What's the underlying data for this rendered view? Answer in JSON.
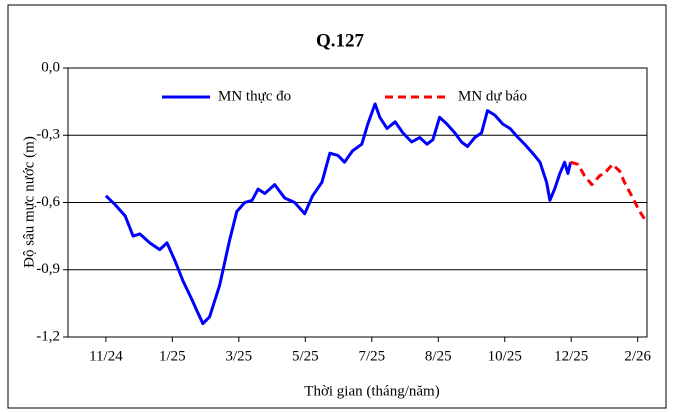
{
  "chart_data": {
    "type": "line",
    "title": "Q.127",
    "x_label": "Thời gian (tháng/năm)",
    "y_label": "Độ sâu mực nước (m)",
    "xlim": [
      -0.57,
      8.14
    ],
    "xticks": [
      {
        "value": 0,
        "label": "11/24"
      },
      {
        "value": 1,
        "label": "1/25"
      },
      {
        "value": 2,
        "label": "3/25"
      },
      {
        "value": 3,
        "label": "5/25"
      },
      {
        "value": 4,
        "label": "7/25"
      },
      {
        "value": 5,
        "label": "8/25"
      },
      {
        "value": 6,
        "label": "10/25"
      },
      {
        "value": 7,
        "label": "12/25"
      },
      {
        "value": 8,
        "label": "2/26"
      }
    ],
    "ylim": [
      -1.2,
      0
    ],
    "yticks": [
      {
        "value": -1.2,
        "label": "-1,2"
      },
      {
        "value": -0.9,
        "label": "-0,9"
      },
      {
        "value": -0.6,
        "label": "-0,6"
      },
      {
        "value": -0.3,
        "label": "-0,3"
      },
      {
        "value": 0,
        "label": "0,0"
      }
    ],
    "grid": true,
    "series": [
      {
        "name": "MN thực đo",
        "color": "#0000ff",
        "dashed": false,
        "x": [
          0,
          0.14,
          0.29,
          0.41,
          0.51,
          0.66,
          0.81,
          0.92,
          1.04,
          1.16,
          1.29,
          1.38,
          1.46,
          1.56,
          1.71,
          1.86,
          1.97,
          2.09,
          2.2,
          2.29,
          2.39,
          2.54,
          2.69,
          2.84,
          2.99,
          3.11,
          3.25,
          3.37,
          3.49,
          3.59,
          3.71,
          3.85,
          3.94,
          4.05,
          4.12,
          4.23,
          4.35,
          4.47,
          4.6,
          4.72,
          4.83,
          4.92,
          5.02,
          5.13,
          5.25,
          5.35,
          5.44,
          5.55,
          5.65,
          5.74,
          5.85,
          5.97,
          6.08,
          6.2,
          6.3,
          6.42,
          6.53,
          6.63,
          6.68,
          6.75,
          6.83,
          6.9,
          6.95,
          6.99
        ],
        "values": [
          -0.57,
          -0.61,
          -0.66,
          -0.75,
          -0.74,
          -0.78,
          -0.81,
          -0.78,
          -0.86,
          -0.95,
          -1.03,
          -1.09,
          -1.14,
          -1.11,
          -0.97,
          -0.77,
          -0.64,
          -0.6,
          -0.59,
          -0.54,
          -0.56,
          -0.52,
          -0.58,
          -0.6,
          -0.65,
          -0.57,
          -0.51,
          -0.38,
          -0.39,
          -0.42,
          -0.37,
          -0.34,
          -0.25,
          -0.16,
          -0.22,
          -0.27,
          -0.24,
          -0.29,
          -0.33,
          -0.31,
          -0.34,
          -0.32,
          -0.22,
          -0.25,
          -0.29,
          -0.33,
          -0.35,
          -0.31,
          -0.29,
          -0.19,
          -0.21,
          -0.25,
          -0.27,
          -0.31,
          -0.34,
          -0.38,
          -0.42,
          -0.51,
          -0.59,
          -0.54,
          -0.47,
          -0.42,
          -0.47,
          -0.42
        ]
      },
      {
        "name": "MN dự báo",
        "color": "#ff0000",
        "dashed": true,
        "x": [
          6.99,
          7.1,
          7.2,
          7.31,
          7.43,
          7.5,
          7.62,
          7.73,
          7.8,
          7.91,
          8.03,
          8.14
        ],
        "values": [
          -0.42,
          -0.43,
          -0.48,
          -0.52,
          -0.48,
          -0.47,
          -0.43,
          -0.46,
          -0.51,
          -0.57,
          -0.64,
          -0.69
        ]
      }
    ]
  }
}
